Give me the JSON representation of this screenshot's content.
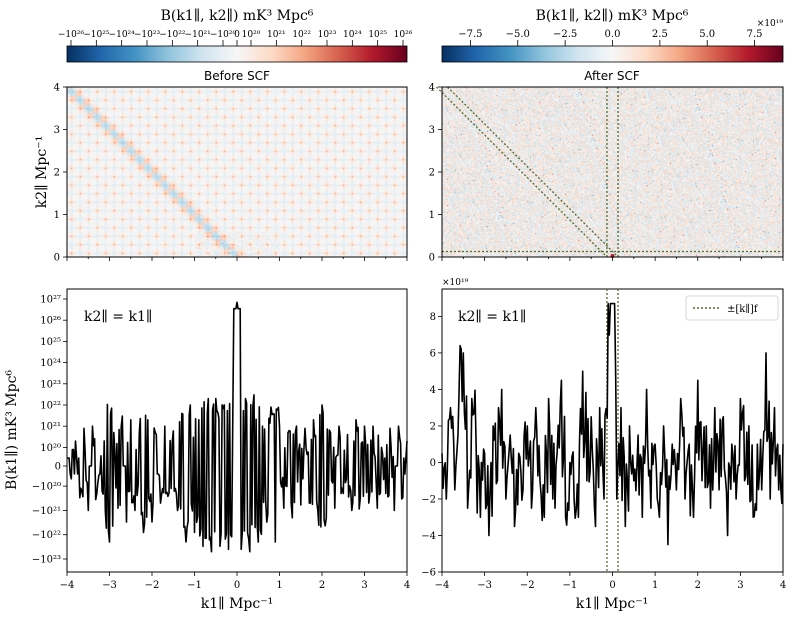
{
  "chart_data": [
    {
      "id": "colorbar_left",
      "type": "colorbar",
      "label": "B(k1∥, k2∥) mK³ Mpc⁶",
      "scale": "symlog",
      "tick_labels": [
        "−10²⁶",
        "−10²⁵",
        "−10²⁴",
        "−10²³",
        "−10²²",
        "−10²¹",
        "−10²⁰",
        "0",
        "10²⁰",
        "10²¹",
        "10²²",
        "10²³",
        "10²⁴",
        "10²⁵",
        "10²⁶"
      ],
      "colormap": [
        "#053061",
        "#2166ac",
        "#4393c3",
        "#92c5de",
        "#d1e5f0",
        "#f7f7f7",
        "#fddbc7",
        "#f4a582",
        "#d6604d",
        "#b2182b",
        "#67001f"
      ]
    },
    {
      "id": "colorbar_right",
      "type": "colorbar",
      "label": "B(k1∥, k2∥) mK³ Mpc⁶",
      "scale": "linear",
      "range": [
        -9.0,
        9.0
      ],
      "ticks": [
        -7.5,
        -5.0,
        -2.5,
        0.0,
        2.5,
        5.0,
        7.5
      ],
      "tick_labels": [
        "−7.5",
        "−5.0",
        "−2.5",
        "0.0",
        "2.5",
        "5.0",
        "7.5"
      ],
      "multiplier": "×10¹⁹"
    },
    {
      "id": "heatmap_before",
      "type": "heatmap",
      "title": "Before SCF",
      "ylabel": "k2∥ Mpc⁻¹",
      "xlim": [
        -4,
        4
      ],
      "ylim": [
        0,
        4
      ],
      "yticks": [
        0,
        1,
        2,
        3,
        4
      ],
      "grid_spacing": 0.2,
      "note": "grid of diffraction-like artifacts with diagonal ridge k2 = -k1"
    },
    {
      "id": "heatmap_after",
      "type": "heatmap",
      "title": "After SCF",
      "xlim": [
        -4,
        4
      ],
      "ylim": [
        0,
        4
      ],
      "yticks": [
        0,
        1,
        2,
        3,
        4
      ],
      "masked_band_kf": 0.13,
      "note": "noise-like residual; dotted lines mark ±[k∥]f masks"
    },
    {
      "id": "line_before",
      "type": "line",
      "annotation": "k2∥ = k1∥",
      "xlabel": "k1∥ Mpc⁻¹",
      "ylabel": "B(k1∥) mK³ Mpc⁶",
      "xlim": [
        -4,
        4
      ],
      "yscale": "symlog",
      "xticks": [
        -4,
        -3,
        -2,
        -1,
        0,
        1,
        2,
        3,
        4
      ],
      "xtick_labels": [
        "−4",
        "−3",
        "−2",
        "−1",
        "0",
        "1",
        "2",
        "3",
        "4"
      ],
      "ytick_labels": [
        "10²⁷",
        "10²⁶",
        "10²⁵",
        "10²⁴",
        "10²³",
        "10²²",
        "10²¹",
        "10²⁰",
        "0",
        "−10²⁰",
        "−10²¹",
        "−10²²",
        "−10²³"
      ],
      "peak": {
        "x": 0.0,
        "y": 7e+26
      },
      "x": [
        -4.0,
        -3.9,
        -3.8,
        -3.7,
        -3.6,
        -3.5,
        -3.4,
        -3.3,
        -3.2,
        -3.1,
        -3.0,
        -2.9,
        -2.8,
        -2.7,
        -2.6,
        -2.5,
        -2.4,
        -2.3,
        -2.2,
        -2.1,
        -2.0,
        -1.9,
        -1.8,
        -1.7,
        -1.6,
        -1.5,
        -1.4,
        -1.3,
        -1.2,
        -1.1,
        -1.0,
        -0.9,
        -0.8,
        -0.7,
        -0.6,
        -0.5,
        -0.4,
        -0.3,
        -0.2,
        -0.1,
        0.0,
        0.1,
        0.2,
        0.3,
        0.4,
        0.5,
        0.6,
        0.7,
        0.8,
        0.9,
        1.0,
        1.1,
        1.2,
        1.3,
        1.4,
        1.5,
        1.6,
        1.7,
        1.8,
        1.9,
        2.0,
        2.1,
        2.2,
        2.3,
        2.4,
        2.5,
        2.6,
        2.7,
        2.8,
        2.9,
        3.0,
        3.1,
        3.2,
        3.3,
        3.4,
        3.5,
        3.6,
        3.7,
        3.8,
        3.9,
        4.0
      ],
      "y": [
        3e+19,
        -5e+19,
        2e+20,
        -3e+20,
        8e+20,
        -1e+21,
        1e+21,
        -2e+20,
        4e+19,
        -1e+21,
        -2e+22,
        5e+20,
        -8e+20,
        3e+21,
        -3e+21,
        2e+21,
        -1e+21,
        5e+20,
        -8e+21,
        2e+21,
        -3e+21,
        4e+20,
        -5e+20,
        1e+21,
        -2e+20,
        6e+20,
        -1e+21,
        4e+21,
        -2e+22,
        1e+22,
        -8e+21,
        2e+21,
        -3e+22,
        4e+21,
        -5e+22,
        2e+22,
        -3e+22,
        1e+22,
        -4e+22,
        3e+21,
        7e+26,
        -4e+22,
        2e+22,
        -5e+22,
        3e+22,
        -2e+22,
        1e+21,
        -3e+21,
        8e+21,
        -2e+22,
        1e+21,
        -8e+20,
        5e+20,
        -2e+21,
        1e+21,
        -6e+20,
        8e+20,
        -5e+20,
        2e+21,
        -1e+21,
        1e+22,
        -2e+21,
        5e+20,
        -8e+20,
        1e+21,
        -2e+20,
        4e+20,
        -1e+21,
        2e+21,
        -3e+20,
        1e+21,
        -5e+20,
        1e+21,
        -8e+20,
        1e+20,
        -2e+20,
        8e+20,
        -1e+21,
        1e+21,
        -3e+20,
        2e+20
      ]
    },
    {
      "id": "line_after",
      "type": "line",
      "annotation": "k2∥ = k1∥",
      "legend": "±[k∥]f",
      "legend_position": "top-right",
      "xlabel": "k1∥ Mpc⁻¹",
      "xlim": [
        -4,
        4
      ],
      "ylim": [
        -6,
        9.5
      ],
      "yticks": [
        -6,
        -4,
        -2,
        0,
        2,
        4,
        6,
        8
      ],
      "ytick_labels": [
        "−6",
        "−4",
        "−2",
        "0",
        "2",
        "4",
        "6",
        "8"
      ],
      "xticks": [
        -4,
        -3,
        -2,
        -1,
        0,
        1,
        2,
        3,
        4
      ],
      "xtick_labels": [
        "−4",
        "−3",
        "−2",
        "−1",
        "0",
        "1",
        "2",
        "3",
        "4"
      ],
      "multiplier": "×10¹⁹",
      "vlines": [
        -0.13,
        0.13
      ],
      "x": [
        -4.0,
        -3.9,
        -3.8,
        -3.7,
        -3.6,
        -3.5,
        -3.4,
        -3.3,
        -3.2,
        -3.1,
        -3.0,
        -2.9,
        -2.8,
        -2.7,
        -2.6,
        -2.5,
        -2.4,
        -2.3,
        -2.2,
        -2.1,
        -2.0,
        -1.9,
        -1.8,
        -1.7,
        -1.6,
        -1.5,
        -1.4,
        -1.3,
        -1.2,
        -1.1,
        -1.0,
        -0.9,
        -0.8,
        -0.7,
        -0.6,
        -0.5,
        -0.4,
        -0.3,
        -0.2,
        -0.1,
        0.0,
        0.1,
        0.2,
        0.3,
        0.4,
        0.5,
        0.6,
        0.7,
        0.8,
        0.9,
        1.0,
        1.1,
        1.2,
        1.3,
        1.4,
        1.5,
        1.6,
        1.7,
        1.8,
        1.9,
        2.0,
        2.1,
        2.2,
        2.3,
        2.4,
        2.5,
        2.6,
        2.7,
        2.8,
        2.9,
        3.0,
        3.1,
        3.2,
        3.3,
        3.4,
        3.5,
        3.6,
        3.7,
        3.8,
        3.9,
        4.0
      ],
      "y": [
        0.5,
        -2.0,
        3.0,
        -1.5,
        4.0,
        6.0,
        -2.5,
        3.5,
        1.0,
        -3.0,
        0.5,
        -4.0,
        2.0,
        -1.0,
        4.0,
        -2.0,
        1.5,
        -3.5,
        0.5,
        -1.5,
        2.0,
        -2.5,
        3.0,
        -1.0,
        -3.0,
        3.5,
        -2.0,
        0.5,
        4.5,
        -3.0,
        0.0,
        -2.0,
        -3.0,
        5.0,
        -1.0,
        2.5,
        -3.5,
        3.0,
        -2.0,
        8.7,
        8.7,
        -2.0,
        3.0,
        -3.5,
        2.0,
        -1.0,
        1.5,
        -3.0,
        4.0,
        -2.5,
        1.0,
        -3.0,
        2.0,
        -4.5,
        1.0,
        -1.5,
        3.5,
        -2.0,
        1.0,
        -3.0,
        4.5,
        -1.0,
        2.0,
        -2.5,
        3.0,
        -1.5,
        2.5,
        -4.0,
        1.0,
        -2.0,
        3.5,
        -1.0,
        2.0,
        -3.0,
        1.0,
        -1.5,
        6.0,
        -2.0,
        3.0,
        -1.5,
        1.0
      ]
    }
  ]
}
